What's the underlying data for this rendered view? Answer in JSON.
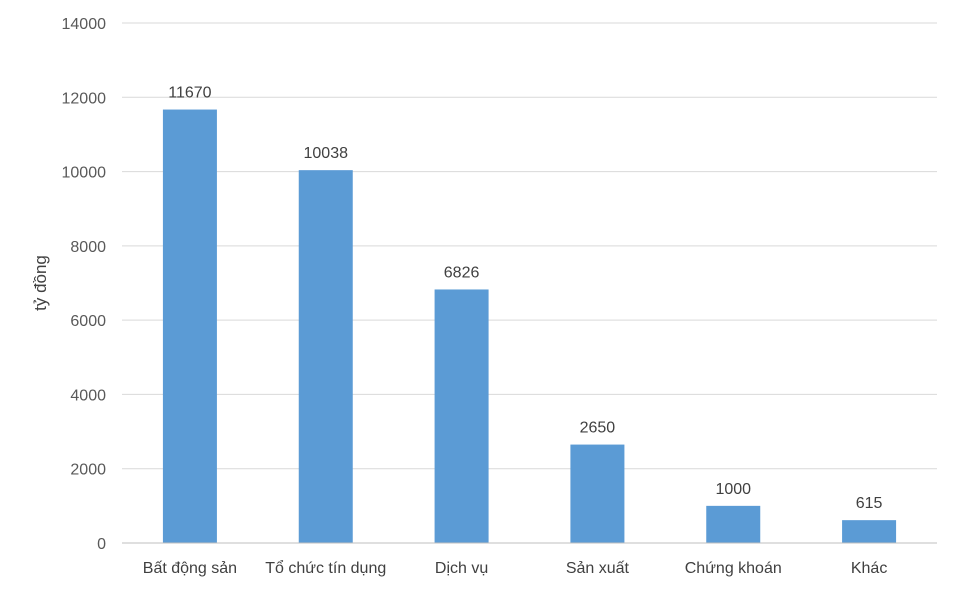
{
  "chart_data": {
    "type": "bar",
    "categories": [
      "Bất động sản",
      "Tổ chức tín dụng",
      "Dịch vụ",
      "Sản xuất",
      "Chứng khoán",
      "Khác"
    ],
    "values": [
      11670,
      10038,
      6826,
      2650,
      1000,
      615
    ],
    "data_labels": [
      "11670",
      "10038",
      "6826",
      "2650",
      "1000",
      "615"
    ],
    "ylabel": "tỷ đồng",
    "ylim": [
      0,
      14000
    ],
    "yticks": [
      "0",
      "2000",
      "4000",
      "6000",
      "8000",
      "10000",
      "12000",
      "14000"
    ],
    "grid": true,
    "legend": "none",
    "bar_color": "#5b9bd5"
  }
}
